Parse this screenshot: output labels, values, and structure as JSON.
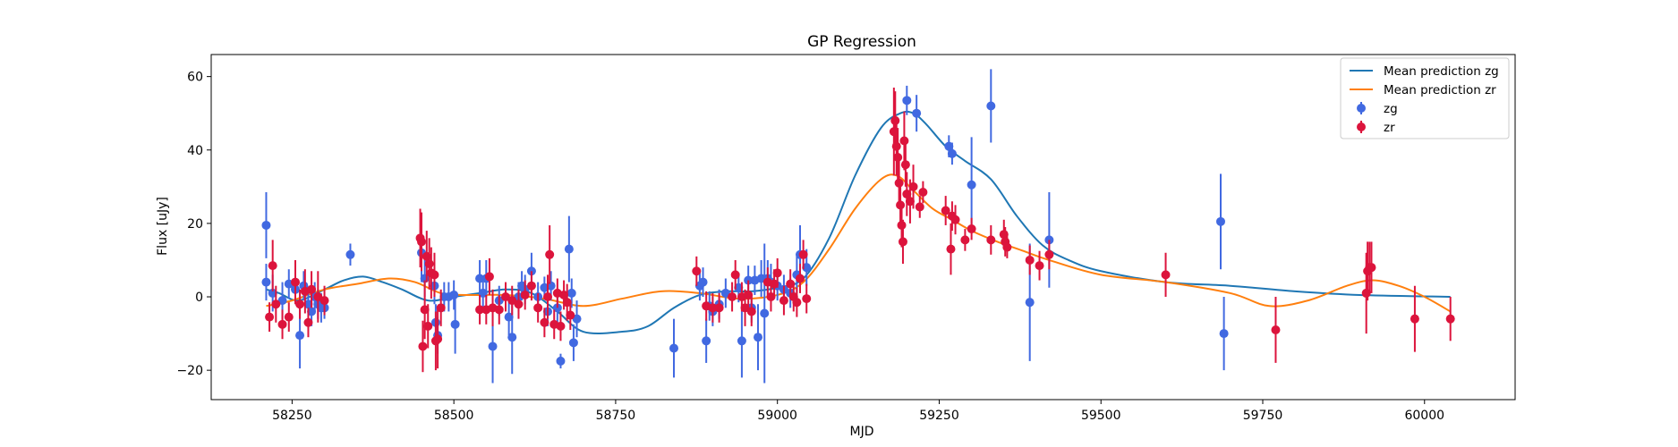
{
  "chart_data": {
    "type": "scatter",
    "title": "GP Regression",
    "xlabel": "MJD",
    "ylabel": "Flux [uJy]",
    "xlim": [
      58125,
      60140
    ],
    "ylim": [
      -28,
      66
    ],
    "xticks": [
      58250,
      58500,
      58750,
      59000,
      59250,
      59500,
      59750,
      60000
    ],
    "yticks": [
      -20,
      0,
      20,
      40,
      60
    ],
    "grid": false,
    "legend_position": "top-right",
    "legend": [
      {
        "label": "Mean prediction zg",
        "kind": "line",
        "color": "#1f77b4"
      },
      {
        "label": "Mean prediction zr",
        "kind": "line",
        "color": "#ff7f0e"
      },
      {
        "label": "zg",
        "kind": "errorbar",
        "color": "#4169e1"
      },
      {
        "label": "zr",
        "kind": "errorbar",
        "color": "#dc143c"
      }
    ],
    "series": [
      {
        "name": "Mean prediction zg",
        "kind": "line",
        "color": "#1f77b4",
        "x": [
          58210,
          58230,
          58260,
          58300,
          58330,
          58360,
          58390,
          58420,
          58460,
          58500,
          58540,
          58580,
          58620,
          58660,
          58700,
          58760,
          58800,
          58840,
          58880,
          58920,
          58960,
          59000,
          59040,
          59080,
          59120,
          59160,
          59190,
          59210,
          59230,
          59260,
          59290,
          59330,
          59370,
          59410,
          59450,
          59500,
          59600,
          59700,
          59800,
          59900,
          60040
        ],
        "y": [
          2,
          1,
          -1,
          2,
          4.5,
          5.5,
          4,
          2,
          -1,
          0,
          1,
          2,
          1,
          -4,
          -9.5,
          -9.5,
          -8,
          -3,
          0.5,
          1.5,
          1.5,
          2.5,
          5,
          16,
          33,
          46,
          50,
          50,
          47,
          41,
          37,
          32,
          22,
          14,
          10,
          7,
          4,
          3,
          1.5,
          0.5,
          0
        ]
      },
      {
        "name": "Mean prediction zr",
        "kind": "line",
        "color": "#ff7f0e",
        "x": [
          58210,
          58250,
          58300,
          58350,
          58400,
          58440,
          58480,
          58520,
          58580,
          58640,
          58700,
          58760,
          58820,
          58880,
          58940,
          59000,
          59040,
          59080,
          59120,
          59160,
          59185,
          59210,
          59240,
          59270,
          59300,
          59340,
          59380,
          59420,
          59500,
          59600,
          59700,
          59760,
          59820,
          59880,
          59920,
          59960,
          60000,
          60040
        ],
        "y": [
          -2.5,
          -1,
          2,
          3.5,
          5,
          4,
          1,
          0.5,
          0.5,
          -0.5,
          -2.5,
          -0.5,
          1.5,
          1,
          -0.5,
          0.5,
          4,
          13,
          24,
          32,
          33,
          29,
          24,
          21,
          18,
          15,
          12.5,
          10,
          6,
          4,
          1,
          -2.5,
          -1,
          3,
          4.5,
          3,
          0,
          -4
        ]
      },
      {
        "name": "zg",
        "kind": "errorbar",
        "color": "#4169e1",
        "points": [
          [
            58210,
            19.5,
            9
          ],
          [
            58210,
            4,
            5
          ],
          [
            58220,
            1,
            5
          ],
          [
            58235,
            -1,
            5
          ],
          [
            58245,
            3.5,
            4
          ],
          [
            58255,
            2,
            4
          ],
          [
            58262,
            -10.5,
            9
          ],
          [
            58268,
            3,
            4
          ],
          [
            58275,
            -2,
            4
          ],
          [
            58280,
            -4,
            4
          ],
          [
            58285,
            0,
            4
          ],
          [
            58290,
            -2,
            4
          ],
          [
            58295,
            -3,
            4
          ],
          [
            58300,
            -3,
            3
          ],
          [
            58340,
            11.5,
            3
          ],
          [
            58450,
            12,
            8
          ],
          [
            58455,
            5,
            5
          ],
          [
            58470,
            3,
            5
          ],
          [
            58472,
            -7,
            5
          ],
          [
            58475,
            -10.5,
            5
          ],
          [
            58485,
            0,
            4
          ],
          [
            58492,
            0,
            4
          ],
          [
            58500,
            0.5,
            4
          ],
          [
            58502,
            -7.5,
            8
          ],
          [
            58540,
            5,
            5
          ],
          [
            58545,
            1,
            4
          ],
          [
            58550,
            5,
            5
          ],
          [
            58560,
            -13.5,
            10
          ],
          [
            58570,
            -1,
            4
          ],
          [
            58585,
            -5.5,
            5
          ],
          [
            58590,
            -11,
            10
          ],
          [
            58600,
            0,
            4
          ],
          [
            58605,
            3,
            4
          ],
          [
            58610,
            2,
            4
          ],
          [
            58620,
            7,
            5
          ],
          [
            58630,
            0,
            4
          ],
          [
            58640,
            2.5,
            3
          ],
          [
            58645,
            -4,
            4
          ],
          [
            58650,
            3,
            4
          ],
          [
            58660,
            -3,
            4
          ],
          [
            58665,
            -17.5,
            2
          ],
          [
            58678,
            13,
            9
          ],
          [
            58682,
            1,
            4
          ],
          [
            58685,
            -12.5,
            5
          ],
          [
            58690,
            -6,
            5
          ],
          [
            58840,
            -14,
            8
          ],
          [
            58880,
            3,
            4
          ],
          [
            58885,
            4,
            4
          ],
          [
            58890,
            -12,
            6
          ],
          [
            58895,
            -2.5,
            4
          ],
          [
            58900,
            -4,
            4
          ],
          [
            58910,
            -2,
            4
          ],
          [
            58920,
            1,
            4
          ],
          [
            58940,
            2.5,
            4
          ],
          [
            58945,
            -12,
            10
          ],
          [
            58955,
            4.5,
            4
          ],
          [
            58960,
            -3,
            4
          ],
          [
            58965,
            4.5,
            4
          ],
          [
            58970,
            -11,
            9
          ],
          [
            58975,
            5,
            5
          ],
          [
            58980,
            -4.5,
            19
          ],
          [
            58985,
            5,
            5
          ],
          [
            58990,
            4,
            5
          ],
          [
            59000,
            3,
            4
          ],
          [
            59010,
            2,
            4
          ],
          [
            59020,
            1,
            4
          ],
          [
            59030,
            6,
            5
          ],
          [
            59035,
            11.5,
            8
          ],
          [
            59045,
            8,
            5
          ],
          [
            59200,
            53.5,
            4
          ],
          [
            59215,
            50,
            5
          ],
          [
            59265,
            41,
            3
          ],
          [
            59270,
            39,
            3
          ],
          [
            59300,
            30.5,
            13
          ],
          [
            59330,
            52,
            10
          ],
          [
            59390,
            -1.5,
            16
          ],
          [
            59420,
            15.5,
            13
          ],
          [
            59685,
            20.5,
            13
          ],
          [
            59690,
            -10,
            10
          ]
        ]
      },
      {
        "name": "zr",
        "kind": "errorbar",
        "color": "#dc143c",
        "points": [
          [
            58215,
            -5.5,
            4
          ],
          [
            58220,
            8.5,
            7
          ],
          [
            58225,
            -2,
            5
          ],
          [
            58235,
            -7.5,
            4
          ],
          [
            58245,
            -5.5,
            4
          ],
          [
            58255,
            4,
            6
          ],
          [
            58262,
            -2,
            4
          ],
          [
            58270,
            1.5,
            6
          ],
          [
            58275,
            -7,
            4
          ],
          [
            58280,
            2,
            5
          ],
          [
            58290,
            0,
            7
          ],
          [
            58300,
            -1,
            4
          ],
          [
            58448,
            16,
            8
          ],
          [
            58450,
            15,
            8
          ],
          [
            58452,
            -13.5,
            7
          ],
          [
            58455,
            -3.5,
            8
          ],
          [
            58458,
            11,
            7
          ],
          [
            58460,
            -8,
            6
          ],
          [
            58462,
            9,
            7
          ],
          [
            58465,
            6.5,
            7
          ],
          [
            58470,
            6,
            6
          ],
          [
            58472,
            -12,
            8
          ],
          [
            58475,
            -11.5,
            8
          ],
          [
            58480,
            -3,
            5
          ],
          [
            58540,
            -3.5,
            4
          ],
          [
            58550,
            -3.5,
            4
          ],
          [
            58555,
            5.5,
            5
          ],
          [
            58560,
            -3,
            5
          ],
          [
            58570,
            -3.5,
            4
          ],
          [
            58580,
            0,
            4
          ],
          [
            58590,
            -1,
            4
          ],
          [
            58600,
            -2,
            4
          ],
          [
            58610,
            0.5,
            4
          ],
          [
            58620,
            3,
            4
          ],
          [
            58630,
            -3,
            4
          ],
          [
            58640,
            -7,
            4
          ],
          [
            58645,
            0,
            6
          ],
          [
            58648,
            11.5,
            8
          ],
          [
            58655,
            -7.5,
            4
          ],
          [
            58660,
            1,
            4
          ],
          [
            58665,
            -8,
            4
          ],
          [
            58670,
            0.5,
            4
          ],
          [
            58675,
            -1.5,
            5
          ],
          [
            58680,
            -5,
            4
          ],
          [
            58875,
            7,
            4
          ],
          [
            58890,
            -2.5,
            4
          ],
          [
            58900,
            -3,
            4
          ],
          [
            58910,
            -3,
            4
          ],
          [
            58930,
            0,
            4
          ],
          [
            58935,
            6,
            4
          ],
          [
            58945,
            0,
            4
          ],
          [
            58950,
            -3,
            5
          ],
          [
            58955,
            0.5,
            4
          ],
          [
            58960,
            -4,
            4
          ],
          [
            58985,
            4,
            4
          ],
          [
            58990,
            0,
            4
          ],
          [
            58995,
            3.5,
            4
          ],
          [
            59000,
            6.5,
            4
          ],
          [
            59010,
            -1,
            4
          ],
          [
            59020,
            3.5,
            4
          ],
          [
            59025,
            0,
            4
          ],
          [
            59030,
            -1.5,
            4
          ],
          [
            59035,
            5,
            4
          ],
          [
            59040,
            11.5,
            4
          ],
          [
            59045,
            -0.5,
            4
          ],
          [
            59180,
            45,
            12
          ],
          [
            59182,
            48,
            8
          ],
          [
            59184,
            41,
            8
          ],
          [
            59186,
            38,
            8
          ],
          [
            59188,
            31,
            6
          ],
          [
            59190,
            25,
            6
          ],
          [
            59192,
            19.5,
            6
          ],
          [
            59194,
            15,
            6
          ],
          [
            59196,
            42.5,
            8
          ],
          [
            59198,
            36,
            6
          ],
          [
            59200,
            28,
            6
          ],
          [
            59205,
            26,
            6
          ],
          [
            59210,
            30,
            6
          ],
          [
            59220,
            24.5,
            3
          ],
          [
            59225,
            28.5,
            3
          ],
          [
            59260,
            23.5,
            4
          ],
          [
            59268,
            13,
            7
          ],
          [
            59270,
            22,
            4
          ],
          [
            59275,
            21,
            4
          ],
          [
            59290,
            15.5,
            3
          ],
          [
            59300,
            18.5,
            3
          ],
          [
            59330,
            15.5,
            4
          ],
          [
            59350,
            17,
            4
          ],
          [
            59352,
            15,
            4
          ],
          [
            59355,
            13.5,
            3
          ],
          [
            59390,
            10,
            4
          ],
          [
            59405,
            8.5,
            4
          ],
          [
            59420,
            11.5,
            4
          ],
          [
            59600,
            6,
            6
          ],
          [
            59770,
            -9,
            9
          ],
          [
            59910,
            1,
            11
          ],
          [
            59912,
            7,
            8
          ],
          [
            59915,
            8,
            7
          ],
          [
            59918,
            8,
            7
          ],
          [
            59985,
            -6,
            9
          ],
          [
            60040,
            -6,
            6
          ]
        ]
      }
    ]
  }
}
